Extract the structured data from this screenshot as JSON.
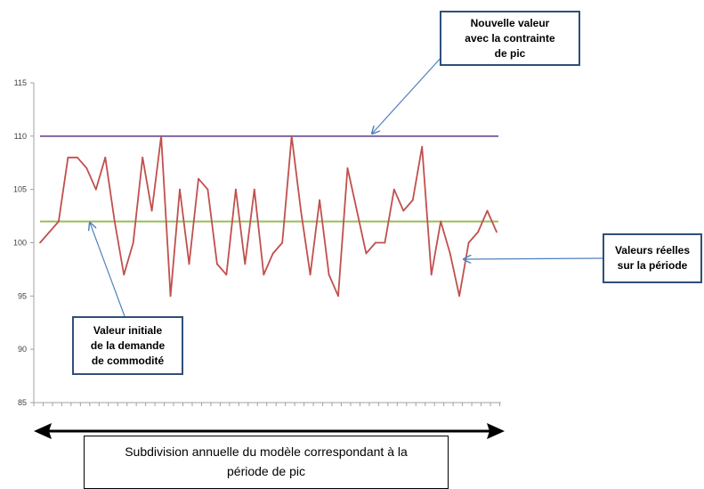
{
  "chart_data": {
    "type": "line",
    "ylim": [
      85,
      115
    ],
    "yticks": [
      "85",
      "90",
      "95",
      "100",
      "105",
      "110",
      "115"
    ],
    "series": [
      {
        "values": [
          100,
          101,
          102,
          108,
          108,
          107,
          105,
          108,
          102,
          97,
          100,
          108,
          103,
          110,
          95,
          105,
          98,
          106,
          105,
          98,
          97,
          105,
          98,
          105,
          97,
          99,
          100,
          110,
          103,
          97,
          104,
          97,
          95,
          107,
          103,
          99,
          100,
          100,
          105,
          103,
          104,
          109,
          97,
          102,
          99,
          95,
          100,
          101,
          103,
          101
        ],
        "color": "#c0504d"
      }
    ],
    "reference_lines": [
      {
        "value": 110,
        "color": "#8064a2"
      },
      {
        "value": 102,
        "color": "#9bbb59"
      }
    ]
  },
  "annotations": {
    "new_value": [
      "Nouvelle valeur",
      "avec la contrainte",
      "de pic"
    ],
    "real_values": [
      "Valeurs réelles",
      "sur la période"
    ],
    "initial_value": [
      "Valeur initiale",
      "de la demande",
      "de commodité"
    ],
    "period": [
      "Subdivision annuelle du modèle correspondant à la",
      "période de pic"
    ]
  },
  "colors": {
    "arrow": "#4f81bd",
    "callout_border": "#2f4f7a",
    "axis": "#a0a0a0"
  }
}
